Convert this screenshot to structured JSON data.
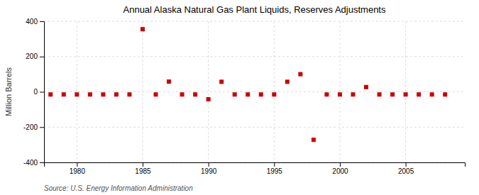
{
  "chart_data": {
    "type": "scatter",
    "title": "Annual Alaska Natural Gas Plant Liquids, Reserves Adjustments",
    "ylabel": "Million Barrels",
    "annotation": "Source: U.S. Energy Information Administration",
    "x": [
      1978,
      1979,
      1980,
      1981,
      1982,
      1983,
      1984,
      1985,
      1986,
      1987,
      1988,
      1989,
      1990,
      1991,
      1992,
      1993,
      1994,
      1995,
      1996,
      1997,
      1998,
      1999,
      2000,
      2001,
      2002,
      2003,
      2004,
      2005,
      2006,
      2007,
      2008
    ],
    "values": [
      -15,
      -15,
      -15,
      -15,
      -15,
      -15,
      -15,
      355,
      -15,
      58,
      -15,
      -15,
      -42,
      57,
      -15,
      -15,
      -15,
      -15,
      57,
      100,
      -272,
      -15,
      -15,
      -15,
      27,
      -15,
      -15,
      -15,
      -15,
      -15,
      -15
    ],
    "color": "#cc0000",
    "marker": "square",
    "xlim": [
      1977.5,
      2009.5
    ],
    "xticks": [
      1980,
      1985,
      1990,
      1995,
      2000,
      2005
    ],
    "ylim": [
      -400,
      400
    ],
    "yticks": [
      -400,
      -200,
      0,
      200,
      400
    ],
    "grid": true
  }
}
